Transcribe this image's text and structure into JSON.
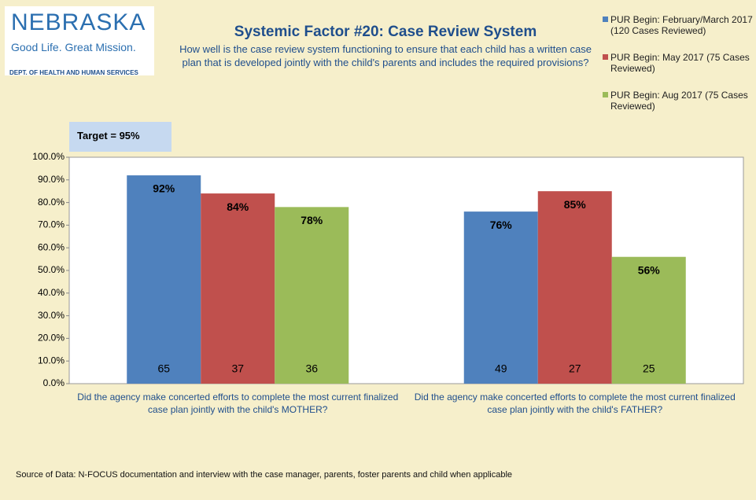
{
  "logo": {
    "name": "NEBRASKA",
    "tagline": "Good Life. Great Mission.",
    "department": "DEPT. OF HEALTH AND HUMAN SERVICES"
  },
  "chart_data": {
    "type": "bar",
    "title": "Systemic Factor #20: Case Review System",
    "subtitle": "How well is the case review system functioning to ensure that each child has a written case plan that is developed jointly with the child's parents and includes the required provisions?",
    "annotation": "Target = 95%",
    "categories": [
      "Did the agency make concerted efforts to complete the most current finalized case plan jointly with the child's MOTHER?",
      "Did the agency make concerted efforts to complete the most current finalized case plan jointly with the child's FATHER?"
    ],
    "series": [
      {
        "name": "PUR Begin: February/March 2017 (120 Cases Reviewed)",
        "color": "#4f81bd",
        "values": [
          92,
          76
        ],
        "value_labels": [
          "92%",
          "76%"
        ],
        "cases": [
          65,
          49
        ]
      },
      {
        "name": "PUR Begin: May 2017 (75 Cases Reviewed)",
        "color": "#c0504d",
        "values": [
          84,
          85
        ],
        "value_labels": [
          "84%",
          "85%"
        ],
        "cases": [
          37,
          27
        ]
      },
      {
        "name": "PUR Begin: Aug 2017 (75 Cases Reviewed)",
        "color": "#9bbb59",
        "values": [
          78,
          56
        ],
        "value_labels": [
          "78%",
          "56%"
        ],
        "cases": [
          36,
          25
        ]
      }
    ],
    "ylim": [
      0,
      100
    ],
    "yticks": [
      {
        "value": 0,
        "label": "0.0%"
      },
      {
        "value": 10,
        "label": "10.0%"
      },
      {
        "value": 20,
        "label": "20.0%"
      },
      {
        "value": 30,
        "label": "30.0%"
      },
      {
        "value": 40,
        "label": "40.0%"
      },
      {
        "value": 50,
        "label": "50.0%"
      },
      {
        "value": 60,
        "label": "60.0%"
      },
      {
        "value": 70,
        "label": "70.0%"
      },
      {
        "value": 80,
        "label": "80.0%"
      },
      {
        "value": 90,
        "label": "90.0%"
      },
      {
        "value": 100,
        "label": "100.0%"
      }
    ],
    "legend": "top-right",
    "source": "Source of Data:  N-FOCUS documentation and interview with the case manager, parents, foster parents and child when applicable"
  }
}
